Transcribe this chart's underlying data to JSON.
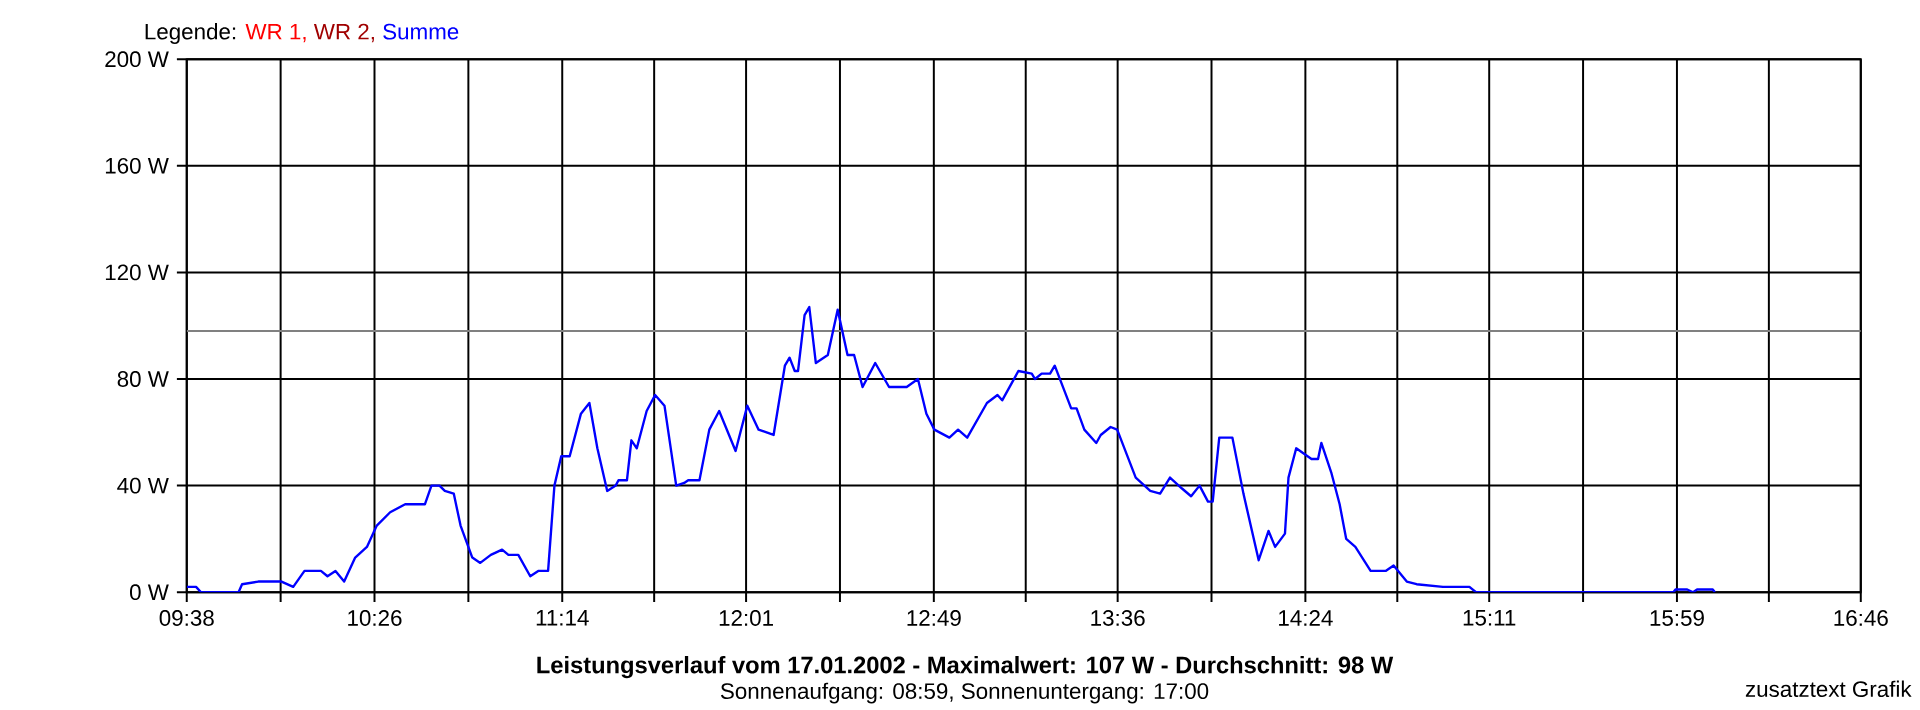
{
  "chart_data": {
    "type": "line",
    "title": "Leistungsverlauf vom 17.01.2002 - Maximalwert: 107 W - Durchschnitt: 98 W",
    "subtitle": "Sonnenaufgang: 08:59, Sonnenuntergang: 17:00",
    "annotations": [
      "zusatztext Grafik"
    ],
    "legend_title": "Legende:",
    "legend": "top left",
    "grid": true,
    "xlim": [
      9.6333,
      16.7667
    ],
    "ylim": [
      0,
      200
    ],
    "xticks": [
      {
        "value": 9.6333,
        "label": "09:38"
      },
      {
        "value": 10.0333,
        "label": null
      },
      {
        "value": 10.4333,
        "label": "10:26"
      },
      {
        "value": 10.8333,
        "label": null
      },
      {
        "value": 11.2333,
        "label": "11:14"
      },
      {
        "value": 11.625,
        "label": null
      },
      {
        "value": 12.0167,
        "label": "12:01"
      },
      {
        "value": 12.4167,
        "label": null
      },
      {
        "value": 12.8167,
        "label": "12:49"
      },
      {
        "value": 13.2083,
        "label": null
      },
      {
        "value": 13.6,
        "label": "13:36"
      },
      {
        "value": 14.0,
        "label": null
      },
      {
        "value": 14.4,
        "label": "14:24"
      },
      {
        "value": 14.7917,
        "label": null
      },
      {
        "value": 15.1833,
        "label": "15:11"
      },
      {
        "value": 15.5833,
        "label": null
      },
      {
        "value": 15.9833,
        "label": "15:59"
      },
      {
        "value": 16.375,
        "label": null
      },
      {
        "value": 16.7667,
        "label": "16:46"
      }
    ],
    "yticks": [
      {
        "value": 0,
        "label": "0 W"
      },
      {
        "value": 40,
        "label": "40 W"
      },
      {
        "value": 80,
        "label": "80 W"
      },
      {
        "value": 120,
        "label": "120 W"
      },
      {
        "value": 160,
        "label": "160 W"
      },
      {
        "value": 200,
        "label": "200 W"
      }
    ],
    "ref_lines": [
      {
        "axis": "y",
        "value": 98,
        "color": "#808080"
      }
    ],
    "x": [
      9.634,
      9.673,
      9.694,
      9.854,
      9.869,
      9.938,
      10.037,
      10.087,
      10.135,
      10.205,
      10.233,
      10.267,
      10.304,
      10.351,
      10.401,
      10.443,
      10.5,
      10.564,
      10.648,
      10.676,
      10.71,
      10.733,
      10.771,
      10.8,
      10.85,
      10.884,
      10.929,
      10.977,
      11.004,
      11.046,
      11.097,
      11.131,
      11.173,
      11.2,
      11.229,
      11.265,
      11.313,
      11.349,
      11.383,
      11.425,
      11.461,
      11.473,
      11.509,
      11.528,
      11.551,
      11.593,
      11.629,
      11.669,
      11.719,
      11.753,
      11.77,
      11.818,
      11.86,
      11.902,
      11.972,
      12.022,
      12.07,
      12.134,
      12.182,
      12.202,
      12.224,
      12.238,
      12.266,
      12.286,
      12.314,
      12.365,
      12.407,
      12.449,
      12.477,
      12.513,
      12.567,
      12.626,
      12.701,
      12.749,
      12.785,
      12.819,
      12.883,
      12.92,
      12.959,
      13.043,
      13.088,
      13.108,
      13.177,
      13.234,
      13.248,
      13.276,
      13.312,
      13.332,
      13.402,
      13.425,
      13.458,
      13.509,
      13.528,
      13.57,
      13.598,
      13.677,
      13.739,
      13.781,
      13.823,
      13.873,
      13.913,
      13.949,
      13.985,
      14.005,
      14.033,
      14.089,
      14.136,
      14.201,
      14.243,
      14.271,
      14.313,
      14.328,
      14.361,
      14.426,
      14.454,
      14.468,
      14.51,
      14.546,
      14.574,
      14.613,
      14.678,
      14.742,
      14.776,
      14.832,
      14.874,
      14.986,
      15.099,
      15.127,
      15.968,
      15.977,
      16.027,
      16.052,
      16.069,
      16.136,
      16.145
    ],
    "series": [
      {
        "name": "WR 1,",
        "color": "#ff0000",
        "values": [
          null,
          null,
          null,
          null,
          null,
          null,
          null,
          null,
          null,
          null,
          null,
          null,
          null,
          null,
          null,
          null,
          null,
          null,
          null,
          null,
          null,
          null,
          null,
          null,
          null,
          null,
          null,
          null,
          null,
          null,
          null,
          null,
          null,
          null,
          null,
          null,
          null,
          null,
          null,
          null,
          null,
          null,
          null,
          null,
          null,
          null,
          null,
          null,
          null,
          null,
          null,
          null,
          null,
          null,
          null,
          null,
          null,
          null,
          null,
          null,
          null,
          null,
          null,
          null,
          null,
          null,
          null,
          null,
          null,
          null,
          null,
          null,
          null,
          null,
          null,
          null,
          null,
          null,
          null,
          null,
          null,
          null,
          null,
          null,
          null,
          null,
          null,
          null,
          null,
          null,
          null,
          null,
          null,
          null,
          null,
          null,
          null,
          null,
          null,
          null,
          null,
          null,
          null,
          null,
          null,
          null,
          null,
          null,
          null,
          null,
          null,
          null,
          null,
          null,
          null,
          null,
          null,
          null,
          null,
          null,
          null,
          null,
          null,
          null,
          null,
          null,
          null,
          null,
          null,
          null,
          null,
          null,
          null,
          null,
          null
        ]
      },
      {
        "name": "WR 2,",
        "color": "#a00000",
        "values": [
          null,
          null,
          null,
          null,
          null,
          null,
          null,
          null,
          null,
          null,
          null,
          null,
          null,
          null,
          null,
          null,
          null,
          null,
          null,
          null,
          null,
          null,
          null,
          null,
          null,
          null,
          null,
          null,
          null,
          null,
          null,
          null,
          null,
          null,
          null,
          null,
          null,
          null,
          null,
          null,
          null,
          null,
          null,
          null,
          null,
          null,
          null,
          null,
          null,
          null,
          null,
          null,
          null,
          null,
          null,
          null,
          null,
          null,
          null,
          null,
          null,
          null,
          null,
          null,
          null,
          null,
          null,
          null,
          null,
          null,
          null,
          null,
          null,
          null,
          null,
          null,
          null,
          null,
          null,
          null,
          null,
          null,
          null,
          null,
          null,
          null,
          null,
          null,
          null,
          null,
          null,
          null,
          null,
          null,
          null,
          null,
          null,
          null,
          null,
          null,
          null,
          null,
          null,
          null,
          null,
          null,
          null,
          null,
          null,
          null,
          null,
          null,
          null,
          null,
          null,
          null,
          null,
          null,
          null,
          null,
          null,
          null,
          null,
          null,
          null,
          null,
          null,
          null,
          null,
          null,
          null,
          null,
          null,
          null,
          null
        ]
      },
      {
        "name": "Summe",
        "color": "#0000ff",
        "values": [
          2,
          2,
          0,
          0,
          3,
          4,
          4,
          2,
          8,
          8,
          6,
          8,
          4,
          13,
          17,
          25,
          30,
          33,
          33,
          40,
          40,
          38,
          37,
          25,
          13,
          11,
          14,
          16,
          14,
          14,
          6,
          8,
          8,
          40,
          51,
          51,
          67,
          71,
          54,
          38,
          40,
          42,
          42,
          57,
          54,
          68,
          74,
          70,
          40,
          41,
          42,
          42,
          61,
          68,
          53,
          70,
          61,
          59,
          85,
          88,
          83,
          83,
          104,
          107,
          86,
          89,
          106,
          89,
          89,
          77,
          86,
          77,
          77,
          80,
          67,
          61,
          58,
          61,
          58,
          71,
          74,
          72,
          83,
          82,
          80,
          82,
          82,
          85,
          69,
          69,
          61,
          56,
          59,
          62,
          61,
          43,
          38,
          37,
          43,
          39,
          36,
          40,
          34,
          34,
          58,
          58,
          37,
          12,
          23,
          17,
          22,
          43,
          54,
          50,
          50,
          56,
          45,
          33,
          20,
          17,
          8,
          8,
          10,
          4,
          3,
          2,
          2,
          0,
          0,
          1,
          1,
          0,
          1,
          1,
          0
        ]
      }
    ]
  }
}
